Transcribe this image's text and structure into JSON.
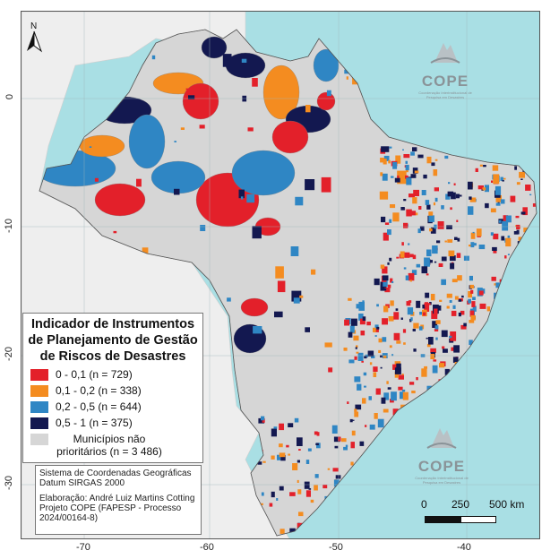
{
  "map": {
    "north_label": "N",
    "x_ticks": [
      "-70",
      "-60",
      "-50",
      "-40"
    ],
    "y_ticks": [
      "0",
      "-10",
      "-20",
      "-30"
    ]
  },
  "legend": {
    "title": "Indicador de Instrumentos de Planejamento de Gestão de Riscos de Desastres",
    "items": [
      {
        "label": "0 - 0,1 (n = 729)",
        "color": "#e3202a"
      },
      {
        "label": "0,1 - 0,2 (n = 338)",
        "color": "#f48c20"
      },
      {
        "label": "0,2 - 0,5 (n = 644)",
        "color": "#2f86c4"
      },
      {
        "label": "0,5 - 1 (n = 375)",
        "color": "#131850"
      },
      {
        "label": "Municípios não prioritários (n = 3 486)",
        "color": "#d6d6d6"
      }
    ]
  },
  "info": {
    "line1": "Sistema de Coordenadas Geográficas",
    "line2": "Datum SIRGAS 2000",
    "line3": "Elaboração: André Luiz Martins Cotting",
    "line4": "Projeto COPE (FAPESP - Processo",
    "line5": "2024/00164-8)"
  },
  "logo": {
    "text": "COPE",
    "subtitle": "Coordenação Interinstitucional de Pesquisa em Desastres"
  },
  "scale": {
    "label_0": "0",
    "label_250": "250",
    "label_500": "500 km"
  },
  "colors": {
    "ocean": "#a9dfe4",
    "land_outside": "#eeeeee",
    "non_priority": "#d6d6d6"
  }
}
